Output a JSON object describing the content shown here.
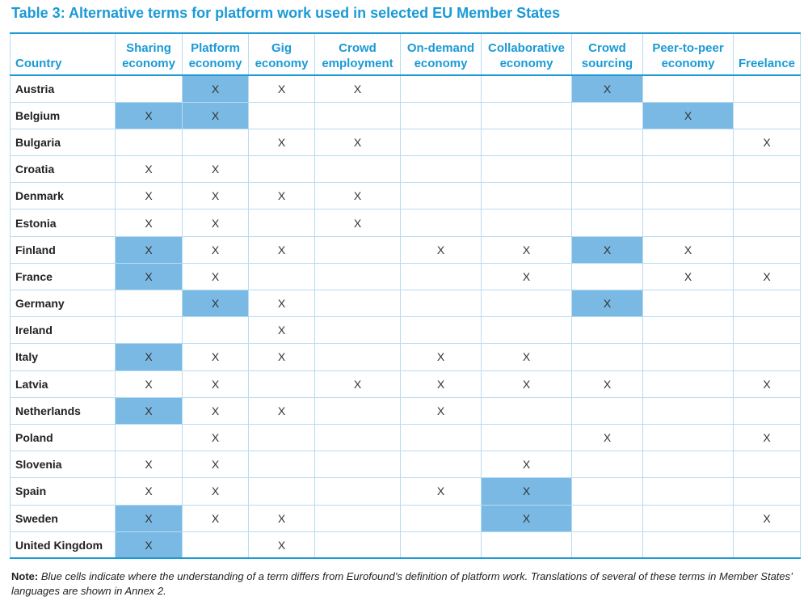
{
  "title": "Table 3: Alternative terms for platform work used in selected EU Member States",
  "columns": {
    "country": "Country",
    "terms": [
      [
        "Sharing",
        "economy"
      ],
      [
        "Platform",
        "economy"
      ],
      [
        "Gig",
        "economy"
      ],
      [
        "Crowd",
        "employment"
      ],
      [
        "On-demand",
        "economy"
      ],
      [
        "Collaborative",
        "economy"
      ],
      [
        "Crowd",
        "sourcing"
      ],
      [
        "Peer-to-peer",
        "economy"
      ],
      [
        "",
        "Freelance"
      ]
    ]
  },
  "mark": "X",
  "highlight_color": "#79b9e4",
  "rows": [
    {
      "country": "Austria",
      "cells": [
        "",
        "X",
        "X",
        "X",
        "",
        "",
        "X",
        "",
        ""
      ],
      "highlight": [
        1,
        6
      ]
    },
    {
      "country": "Belgium",
      "cells": [
        "X",
        "X",
        "",
        "",
        "",
        "",
        "",
        "X",
        ""
      ],
      "highlight": [
        0,
        1,
        7
      ]
    },
    {
      "country": "Bulgaria",
      "cells": [
        "",
        "",
        "X",
        "X",
        "",
        "",
        "",
        "",
        "X"
      ],
      "highlight": []
    },
    {
      "country": "Croatia",
      "cells": [
        "X",
        "X",
        "",
        "",
        "",
        "",
        "",
        "",
        ""
      ],
      "highlight": []
    },
    {
      "country": "Denmark",
      "cells": [
        "X",
        "X",
        "X",
        "X",
        "",
        "",
        "",
        "",
        ""
      ],
      "highlight": []
    },
    {
      "country": "Estonia",
      "cells": [
        "X",
        "X",
        "",
        "X",
        "",
        "",
        "",
        "",
        ""
      ],
      "highlight": []
    },
    {
      "country": "Finland",
      "cells": [
        "X",
        "X",
        "X",
        "",
        "X",
        "X",
        "X",
        "X",
        ""
      ],
      "highlight": [
        0,
        6
      ]
    },
    {
      "country": "France",
      "cells": [
        "X",
        "X",
        "",
        "",
        "",
        "X",
        "",
        "X",
        "X"
      ],
      "highlight": [
        0
      ]
    },
    {
      "country": "Germany",
      "cells": [
        "",
        "X",
        "X",
        "",
        "",
        "",
        "X",
        "",
        ""
      ],
      "highlight": [
        1,
        6
      ]
    },
    {
      "country": "Ireland",
      "cells": [
        "",
        "",
        "X",
        "",
        "",
        "",
        "",
        "",
        ""
      ],
      "highlight": []
    },
    {
      "country": "Italy",
      "cells": [
        "X",
        "X",
        "X",
        "",
        "X",
        "X",
        "",
        "",
        ""
      ],
      "highlight": [
        0
      ]
    },
    {
      "country": "Latvia",
      "cells": [
        "X",
        "X",
        "",
        "X",
        "X",
        "X",
        "X",
        "",
        "X"
      ],
      "highlight": []
    },
    {
      "country": "Netherlands",
      "cells": [
        "X",
        "X",
        "X",
        "",
        "X",
        "",
        "",
        "",
        ""
      ],
      "highlight": [
        0
      ]
    },
    {
      "country": "Poland",
      "cells": [
        "",
        "X",
        "",
        "",
        "",
        "",
        "X",
        "",
        "X"
      ],
      "highlight": []
    },
    {
      "country": "Slovenia",
      "cells": [
        "X",
        "X",
        "",
        "",
        "",
        "X",
        "",
        "",
        ""
      ],
      "highlight": []
    },
    {
      "country": "Spain",
      "cells": [
        "X",
        "X",
        "",
        "",
        "X",
        "X",
        "",
        "",
        ""
      ],
      "highlight": [
        5
      ]
    },
    {
      "country": "Sweden",
      "cells": [
        "X",
        "X",
        "X",
        "",
        "",
        "X",
        "",
        "",
        "X"
      ],
      "highlight": [
        0,
        5
      ]
    },
    {
      "country": "United Kingdom",
      "cells": [
        "X",
        "",
        "X",
        "",
        "",
        "",
        "",
        "",
        ""
      ],
      "highlight": [
        0
      ]
    }
  ],
  "note": {
    "label": "Note:",
    "text": "Blue cells indicate where the understanding of a term differs from Eurofound’s definition of platform work. Translations of several of these terms in Member States’ languages are shown in Annex 2."
  }
}
